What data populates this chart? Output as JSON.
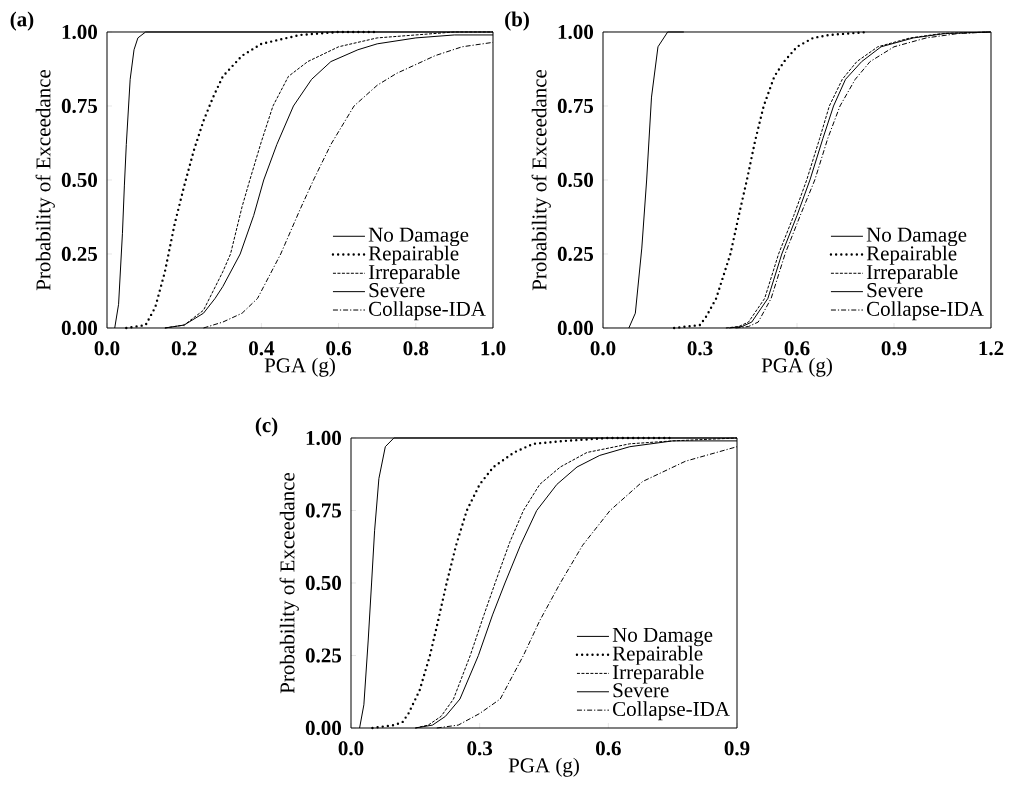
{
  "chart_data": [
    {
      "type": "line",
      "title": "(a)",
      "xlabel": "PGA (g)",
      "ylabel": "Probability of Exceedance",
      "legend": "bottom right",
      "xlim": [
        0,
        1.0
      ],
      "ylim": [
        0,
        1.0
      ],
      "xticks": [
        {
          "value": 0,
          "label": "0.0"
        },
        {
          "value": 0.2,
          "label": "0.2"
        },
        {
          "value": 0.4,
          "label": "0.4"
        },
        {
          "value": 0.6,
          "label": "0.6"
        },
        {
          "value": 0.8,
          "label": "0.8"
        },
        {
          "value": 1.0,
          "label": "1.0"
        }
      ],
      "yticks": [
        {
          "value": 0,
          "label": "0.00"
        },
        {
          "value": 0.25,
          "label": "0.25"
        },
        {
          "value": 0.5,
          "label": "0.50"
        },
        {
          "value": 0.75,
          "label": "0.75"
        },
        {
          "value": 1.0,
          "label": "1.00"
        }
      ],
      "series": [
        {
          "name": "No Damage",
          "color": "#000000",
          "line_style": "solid",
          "x": [
            0.02,
            0.03,
            0.04,
            0.045,
            0.05,
            0.06,
            0.07,
            0.08,
            0.1,
            0.15,
            1.0
          ],
          "values": [
            0,
            0.08,
            0.32,
            0.48,
            0.62,
            0.84,
            0.94,
            0.98,
            1,
            1,
            1
          ]
        },
        {
          "name": "Repairable",
          "color": "#000000",
          "line_style": "dotted",
          "x": [
            0.05,
            0.1,
            0.125,
            0.15,
            0.175,
            0.2,
            0.225,
            0.25,
            0.275,
            0.3,
            0.35,
            0.4,
            0.5,
            0.6,
            0.7
          ],
          "values": [
            0,
            0.01,
            0.07,
            0.19,
            0.35,
            0.48,
            0.6,
            0.7,
            0.78,
            0.85,
            0.92,
            0.96,
            0.99,
            1,
            1
          ]
        },
        {
          "name": "Irreparable",
          "color": "#000000",
          "line_style": "dashed",
          "x": [
            0.15,
            0.2,
            0.25,
            0.3,
            0.32,
            0.35,
            0.37,
            0.4,
            0.43,
            0.47,
            0.52,
            0.6,
            0.7,
            0.8,
            0.9,
            1.0
          ],
          "values": [
            0,
            0.01,
            0.06,
            0.19,
            0.25,
            0.41,
            0.5,
            0.63,
            0.75,
            0.85,
            0.9,
            0.95,
            0.98,
            0.99,
            1,
            1
          ]
        },
        {
          "name": "Severe",
          "color": "#000000",
          "line_style": "solid",
          "x": [
            0.15,
            0.2,
            0.25,
            0.28,
            0.3,
            0.345,
            0.38,
            0.406,
            0.44,
            0.483,
            0.53,
            0.58,
            0.65,
            0.7,
            0.8,
            0.9,
            1.0
          ],
          "values": [
            0,
            0.01,
            0.05,
            0.1,
            0.14,
            0.25,
            0.38,
            0.5,
            0.62,
            0.75,
            0.84,
            0.9,
            0.94,
            0.96,
            0.98,
            0.99,
            0.99
          ]
        },
        {
          "name": "Collapse-IDA",
          "color": "#000000",
          "line_style": "dashdot",
          "x": [
            0.25,
            0.3,
            0.35,
            0.39,
            0.45,
            0.5,
            0.535,
            0.58,
            0.64,
            0.7,
            0.75,
            0.85,
            0.92,
            1.0
          ],
          "values": [
            0,
            0.02,
            0.05,
            0.1,
            0.25,
            0.4,
            0.5,
            0.62,
            0.75,
            0.82,
            0.86,
            0.92,
            0.95,
            0.965
          ]
        }
      ]
    },
    {
      "type": "line",
      "title": "(b)",
      "xlabel": "PGA (g)",
      "ylabel": "Probability of Exceedance",
      "legend": "bottom right",
      "xlim": [
        0,
        1.2
      ],
      "ylim": [
        0,
        1.0
      ],
      "xticks": [
        {
          "value": 0,
          "label": "0.0"
        },
        {
          "value": 0.3,
          "label": "0.3"
        },
        {
          "value": 0.6,
          "label": "0.6"
        },
        {
          "value": 0.9,
          "label": "0.9"
        },
        {
          "value": 1.2,
          "label": "1.2"
        }
      ],
      "yticks": [
        {
          "value": 0,
          "label": "0.00"
        },
        {
          "value": 0.25,
          "label": "0.25"
        },
        {
          "value": 0.5,
          "label": "0.50"
        },
        {
          "value": 0.75,
          "label": "0.75"
        },
        {
          "value": 1.0,
          "label": "1.00"
        }
      ],
      "series": [
        {
          "name": "No Damage",
          "color": "#000000",
          "line_style": "solid",
          "x": [
            0.08,
            0.1,
            0.12,
            0.135,
            0.15,
            0.17,
            0.2,
            0.25
          ],
          "values": [
            0,
            0.05,
            0.27,
            0.5,
            0.78,
            0.95,
            1,
            1
          ]
        },
        {
          "name": "Repairable",
          "color": "#000000",
          "line_style": "dotted",
          "x": [
            0.22,
            0.3,
            0.32,
            0.35,
            0.394,
            0.42,
            0.445,
            0.47,
            0.497,
            0.53,
            0.56,
            0.6,
            0.65,
            0.7,
            0.82
          ],
          "values": [
            0,
            0.01,
            0.04,
            0.1,
            0.25,
            0.38,
            0.5,
            0.63,
            0.75,
            0.85,
            0.9,
            0.95,
            0.98,
            0.99,
            1
          ]
        },
        {
          "name": "Irreparable",
          "color": "#000000",
          "line_style": "dashed",
          "x": [
            0.38,
            0.42,
            0.45,
            0.5,
            0.543,
            0.59,
            0.63,
            0.67,
            0.7,
            0.74,
            0.785,
            0.85,
            0.95,
            1.05,
            1.2
          ],
          "values": [
            0,
            0.005,
            0.02,
            0.1,
            0.25,
            0.38,
            0.5,
            0.64,
            0.75,
            0.84,
            0.9,
            0.95,
            0.98,
            0.995,
            1
          ]
        },
        {
          "name": "Severe",
          "color": "#000000",
          "line_style": "solid",
          "x": [
            0.39,
            0.43,
            0.46,
            0.51,
            0.553,
            0.6,
            0.64,
            0.68,
            0.713,
            0.75,
            0.8,
            0.86,
            0.96,
            1.06,
            1.2
          ],
          "values": [
            0,
            0.005,
            0.02,
            0.1,
            0.25,
            0.38,
            0.5,
            0.64,
            0.75,
            0.84,
            0.9,
            0.95,
            0.98,
            0.995,
            1
          ]
        },
        {
          "name": "Collapse-IDA",
          "color": "#000000",
          "line_style": "dashdot",
          "x": [
            0.41,
            0.45,
            0.48,
            0.52,
            0.563,
            0.61,
            0.655,
            0.695,
            0.733,
            0.78,
            0.826,
            0.9,
            1.0,
            1.1,
            1.2
          ],
          "values": [
            0,
            0.005,
            0.02,
            0.1,
            0.25,
            0.38,
            0.5,
            0.64,
            0.75,
            0.84,
            0.9,
            0.95,
            0.98,
            0.995,
            1
          ]
        }
      ]
    },
    {
      "type": "line",
      "title": "(c)",
      "xlabel": "PGA (g)",
      "ylabel": "Probability of Exceedance",
      "legend": "bottom right",
      "xlim": [
        0,
        0.9
      ],
      "ylim": [
        0,
        1.0
      ],
      "xticks": [
        {
          "value": 0,
          "label": "0.0"
        },
        {
          "value": 0.3,
          "label": "0.3"
        },
        {
          "value": 0.6,
          "label": "0.6"
        },
        {
          "value": 0.9,
          "label": "0.9"
        }
      ],
      "yticks": [
        {
          "value": 0,
          "label": "0.00"
        },
        {
          "value": 0.25,
          "label": "0.25"
        },
        {
          "value": 0.5,
          "label": "0.50"
        },
        {
          "value": 0.75,
          "label": "0.75"
        },
        {
          "value": 1.0,
          "label": "1.00"
        }
      ],
      "series": [
        {
          "name": "No Damage",
          "color": "#000000",
          "line_style": "solid",
          "x": [
            0.02,
            0.03,
            0.04,
            0.048,
            0.055,
            0.065,
            0.08,
            0.1,
            0.15,
            0.9
          ],
          "values": [
            0,
            0.08,
            0.3,
            0.5,
            0.68,
            0.86,
            0.97,
            1,
            1,
            1
          ]
        },
        {
          "name": "Repairable",
          "color": "#000000",
          "line_style": "dotted",
          "x": [
            0.05,
            0.1,
            0.12,
            0.134,
            0.16,
            0.184,
            0.2,
            0.223,
            0.245,
            0.27,
            0.3,
            0.332,
            0.38,
            0.425,
            0.5,
            0.6,
            0.745
          ],
          "values": [
            0,
            0.01,
            0.02,
            0.05,
            0.13,
            0.25,
            0.35,
            0.5,
            0.63,
            0.75,
            0.84,
            0.9,
            0.95,
            0.98,
            0.99,
            1,
            1
          ]
        },
        {
          "name": "Irreparable",
          "color": "#000000",
          "line_style": "dashed",
          "x": [
            0.15,
            0.18,
            0.21,
            0.239,
            0.278,
            0.31,
            0.336,
            0.37,
            0.402,
            0.44,
            0.488,
            0.55,
            0.65,
            0.75,
            0.9
          ],
          "values": [
            0,
            0.01,
            0.04,
            0.1,
            0.25,
            0.39,
            0.5,
            0.64,
            0.75,
            0.84,
            0.9,
            0.95,
            0.98,
            0.99,
            1
          ]
        },
        {
          "name": "Severe",
          "color": "#000000",
          "line_style": "solid",
          "x": [
            0.15,
            0.19,
            0.22,
            0.254,
            0.297,
            0.33,
            0.359,
            0.395,
            0.433,
            0.48,
            0.527,
            0.58,
            0.65,
            0.75,
            0.9
          ],
          "values": [
            0,
            0.01,
            0.04,
            0.1,
            0.25,
            0.39,
            0.5,
            0.63,
            0.75,
            0.84,
            0.9,
            0.94,
            0.97,
            0.99,
            0.99
          ]
        },
        {
          "name": "Collapse-IDA",
          "color": "#000000",
          "line_style": "dashdot",
          "x": [
            0.2,
            0.25,
            0.3,
            0.348,
            0.402,
            0.44,
            0.488,
            0.54,
            0.604,
            0.68,
            0.78,
            0.9
          ],
          "values": [
            0,
            0.01,
            0.05,
            0.1,
            0.25,
            0.37,
            0.5,
            0.63,
            0.75,
            0.85,
            0.92,
            0.97
          ]
        }
      ]
    }
  ]
}
